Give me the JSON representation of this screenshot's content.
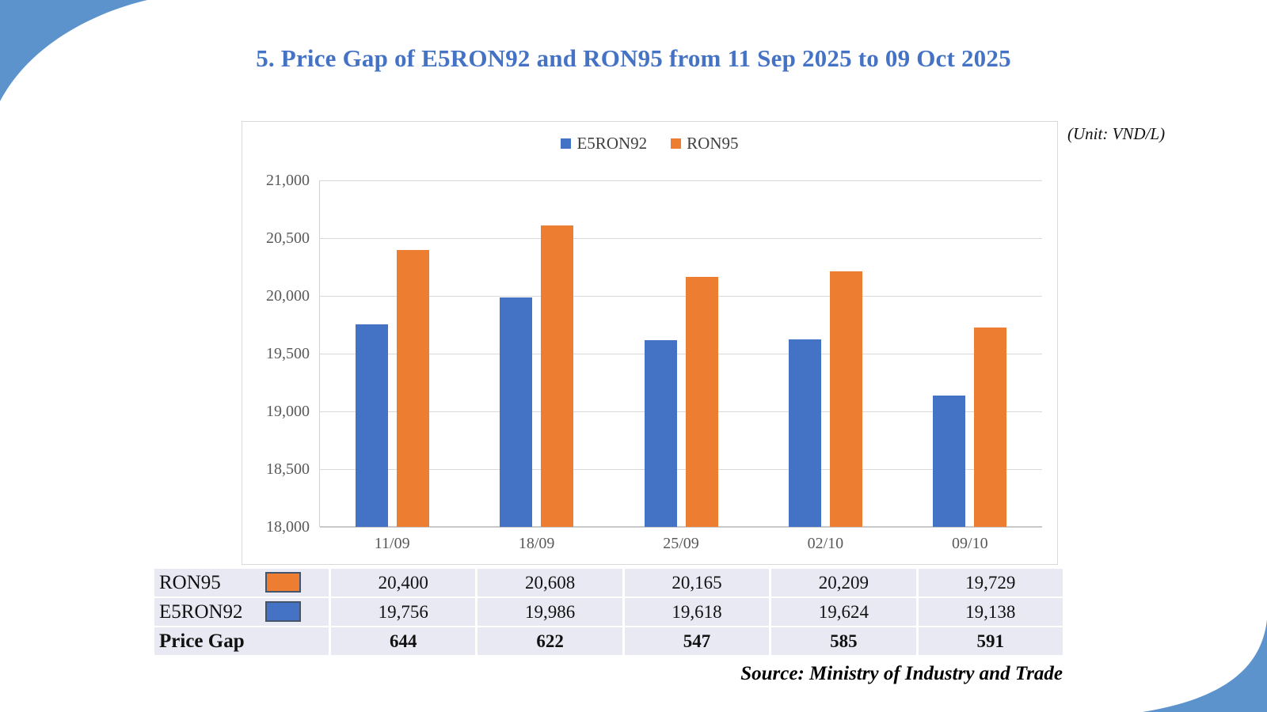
{
  "slide": {
    "title": "5. Price Gap of E5RON92 and RON95 from 11 Sep 2025 to 09 Oct 2025",
    "unit_note": "(Unit: VND/L)",
    "source": "Source: Ministry of Industry and Trade"
  },
  "colors": {
    "title": "#4472C4",
    "corner_decoration": "#5C93CC",
    "e5ron92": "#4472C4",
    "ron95": "#ED7D31",
    "table_cell_bg": "#E9E9F3",
    "gridline": "#D9D9D9",
    "axis_text": "#595959",
    "swatch_border": "#44546A"
  },
  "chart_data": {
    "type": "bar",
    "title": "",
    "categories": [
      "11/09",
      "18/09",
      "25/09",
      "02/10",
      "09/10"
    ],
    "series": [
      {
        "name": "E5RON92",
        "color": "#4472C4",
        "values": [
          19756,
          19986,
          19618,
          19624,
          19138
        ]
      },
      {
        "name": "RON95",
        "color": "#ED7D31",
        "values": [
          20400,
          20608,
          20165,
          20209,
          19729
        ]
      }
    ],
    "ylim": [
      18000,
      21000
    ],
    "ytick_step": 500,
    "ytick_labels": [
      "21,000",
      "20,500",
      "20,000",
      "19,500",
      "19,000",
      "18,500",
      "18,000"
    ],
    "legend_position": "top-center",
    "grid": true
  },
  "table": {
    "rows": [
      {
        "label": "RON95",
        "swatch": "#ED7D31",
        "bold": false,
        "values": [
          "20,400",
          "20,608",
          "20,165",
          "20,209",
          "19,729"
        ]
      },
      {
        "label": "E5RON92",
        "swatch": "#4472C4",
        "bold": false,
        "values": [
          "19,756",
          "19,986",
          "19,618",
          "19,624",
          "19,138"
        ]
      },
      {
        "label": "Price Gap",
        "swatch": null,
        "bold": true,
        "values": [
          "644",
          "622",
          "547",
          "585",
          "591"
        ]
      }
    ]
  }
}
